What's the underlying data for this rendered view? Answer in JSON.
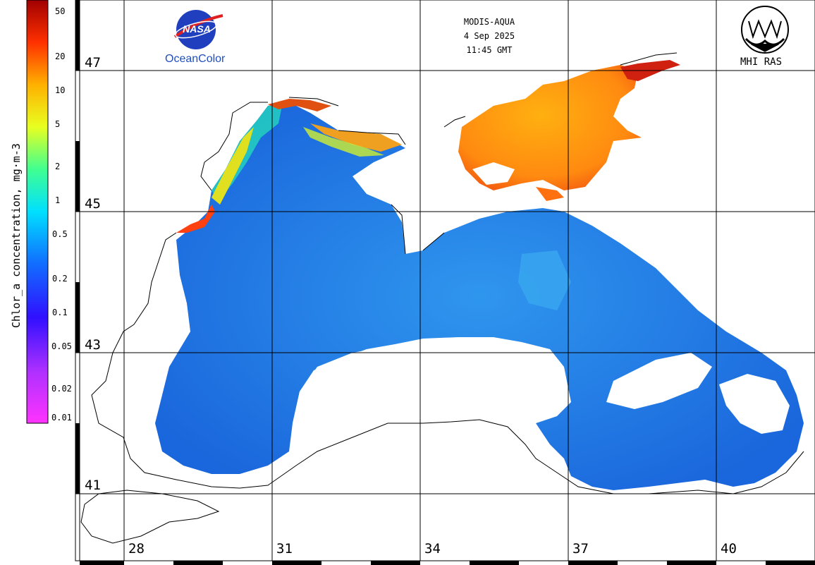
{
  "header": {
    "sensor": "MODIS-AQUA",
    "date": "4 Sep 2025",
    "time": "11:45 GMT"
  },
  "logos": {
    "nasa": "NASA",
    "oceancolor": "OceanColor",
    "mhi": "MHI RAS"
  },
  "colorbar": {
    "title": "Chlor_a concentration, mg·m-3",
    "ticks": [
      "50",
      "20",
      "10",
      "5",
      "2",
      "1",
      "0.5",
      "0.2",
      "0.1",
      "0.05",
      "0.02",
      "0.01"
    ]
  },
  "grid": {
    "lat_labels": [
      "47",
      "45",
      "43",
      "41"
    ],
    "lon_labels": [
      "28",
      "31",
      "34",
      "37",
      "40"
    ]
  },
  "colors": {
    "low": "#ff00ff",
    "mid": "#1e6fe0",
    "high": "#ff6600",
    "max": "#b00000"
  }
}
